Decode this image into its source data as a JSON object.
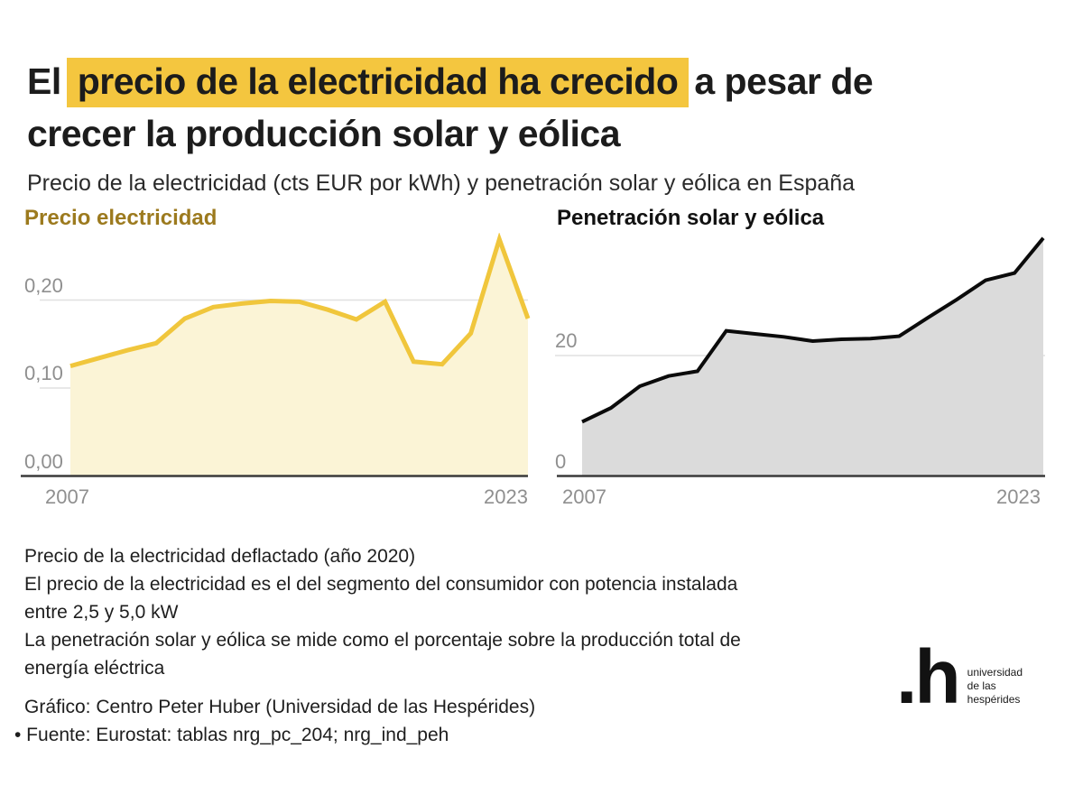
{
  "page": {
    "title": {
      "pre": "El",
      "highlight": "precio de la electricidad ha crecido",
      "highlight_color": "#F4C63F",
      "post": "a pesar de",
      "line2": "crecer la producción solar y eólica"
    },
    "subtitle": "Precio de la electricidad (cts EUR por kWh) y penetración solar y eólica en España",
    "notes": [
      "Precio de la electricidad deflactado (año 2020)",
      "El precio de la electricidad es el del segmento del consumidor con potencia instalada",
      "entre 2,5 y 5,0 kW",
      "La penetración solar y eólica se mide como el porcentaje sobre la producción total de",
      "energía eléctrica"
    ],
    "credit": "Gráfico: Centro Peter Huber (Universidad de las Hespérides)",
    "source": "• Fuente: Eurostat: tablas nrg_pc_204; nrg_ind_peh",
    "logo": {
      "mark": ".h",
      "lines": [
        "universidad",
        "de las",
        "hespérides"
      ]
    }
  },
  "colors": {
    "background": "#ffffff",
    "accent_yellow": "#F4C63F",
    "grid": "#E0E0E0",
    "axis": "#3a3a3a",
    "tick_label": "#8f8f8f"
  },
  "chart_data": [
    {
      "type": "area",
      "title": "Precio electricidad",
      "title_color": "#9C7A1E",
      "line_color": "#F0C63C",
      "fill_color": "#FBF4D6",
      "x": [
        2007,
        2008,
        2009,
        2010,
        2011,
        2012,
        2013,
        2014,
        2015,
        2016,
        2017,
        2018,
        2019,
        2020,
        2021,
        2022,
        2023
      ],
      "values": [
        0.125,
        0.134,
        0.143,
        0.151,
        0.179,
        0.192,
        0.196,
        0.199,
        0.198,
        0.189,
        0.178,
        0.198,
        0.13,
        0.127,
        0.162,
        0.269,
        0.179
      ],
      "y_ticks": [
        {
          "label": "0,20",
          "value": 0.2
        },
        {
          "label": "0,10",
          "value": 0.1
        },
        {
          "label": "0,00",
          "value": 0.0
        }
      ],
      "x_ticks": [
        "2007",
        "2023"
      ],
      "xlim": [
        2007,
        2023
      ],
      "ylim": [
        0,
        0.28
      ],
      "grid": "horizontal",
      "legend": "none"
    },
    {
      "type": "area",
      "title": "Penetración solar y eólica",
      "title_color": "#111111",
      "line_color": "#0b0b0b",
      "fill_color": "#DBDBDB",
      "x": [
        2007,
        2008,
        2009,
        2010,
        2011,
        2012,
        2013,
        2014,
        2015,
        2016,
        2017,
        2018,
        2019,
        2020,
        2021,
        2022,
        2023
      ],
      "values": [
        9.0,
        11.3,
        14.9,
        16.6,
        17.4,
        24.1,
        23.6,
        23.1,
        22.4,
        22.7,
        22.8,
        23.2,
        26.3,
        29.3,
        32.5,
        33.7,
        39.5
      ],
      "y_ticks": [
        {
          "label": "20",
          "value": 20
        },
        {
          "label": "0",
          "value": 0
        }
      ],
      "x_ticks": [
        "2007",
        "2023"
      ],
      "xlim": [
        2007,
        2023
      ],
      "ylim": [
        0,
        41
      ],
      "grid": "horizontal",
      "legend": "none"
    }
  ]
}
